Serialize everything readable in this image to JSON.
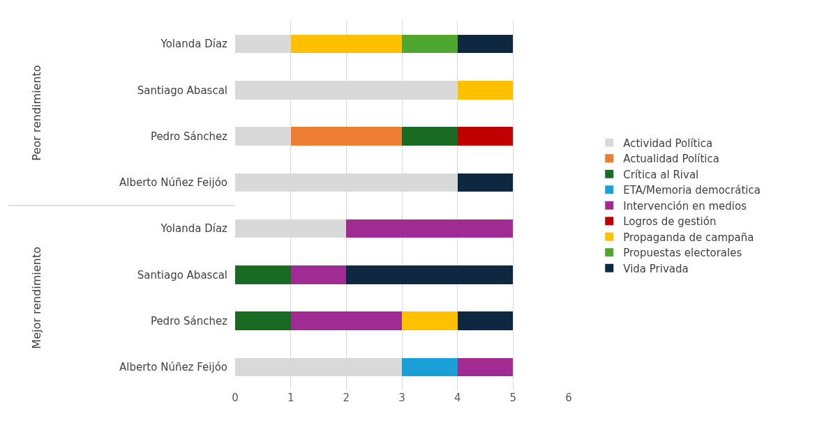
{
  "chart_data": {
    "type": "bar",
    "orientation": "horizontal",
    "stacked": true,
    "categories": [
      "Yolanda Díaz",
      "Santiago Abascal",
      "Pedro Sánchez",
      "Alberto Núñez Feijóo",
      "Yolanda Díaz",
      "Santiago Abascal",
      "Pedro Sánchez",
      "Alberto Núñez Feijóo"
    ],
    "series": [
      {
        "name": "Actividad Política",
        "color": "#d9d9d9",
        "values": [
          1,
          4,
          1,
          4,
          2,
          null,
          null,
          3
        ]
      },
      {
        "name": "Actualidad Política",
        "color": "#ed7d31",
        "values": [
          null,
          null,
          2,
          null,
          null,
          null,
          null,
          null
        ]
      },
      {
        "name": "Crítica al Rival",
        "color": "#196b24",
        "values": [
          null,
          null,
          1,
          null,
          null,
          1,
          1,
          null
        ]
      },
      {
        "name": "ETA/Memoria democrática",
        "color": "#1a9fd6",
        "values": [
          null,
          null,
          null,
          null,
          null,
          null,
          null,
          1
        ]
      },
      {
        "name": "Intervención en medios",
        "color": "#a02b93",
        "values": [
          null,
          null,
          null,
          null,
          3,
          1,
          2,
          1
        ]
      },
      {
        "name": "Logros de gestión",
        "color": "#c00000",
        "values": [
          null,
          null,
          1,
          null,
          null,
          null,
          null,
          null
        ]
      },
      {
        "name": "Propaganda de campaña",
        "color": "#ffc000",
        "values": [
          2,
          1,
          null,
          null,
          null,
          null,
          1,
          null
        ]
      },
      {
        "name": "Propuestas electorales",
        "color": "#4ea72e",
        "values": [
          1,
          null,
          null,
          null,
          null,
          null,
          null,
          null
        ]
      },
      {
        "name": "Vida Privada",
        "color": "#0e2841",
        "values": [
          1,
          null,
          null,
          1,
          null,
          3,
          1,
          null
        ]
      }
    ],
    "xlim": [
      0,
      6
    ],
    "xticks": [
      0,
      1,
      2,
      3,
      4,
      5,
      6
    ],
    "grid": "x",
    "legend": "right",
    "annotations": [
      "Peor rendimiento",
      "Mejor rendimiento"
    ]
  }
}
